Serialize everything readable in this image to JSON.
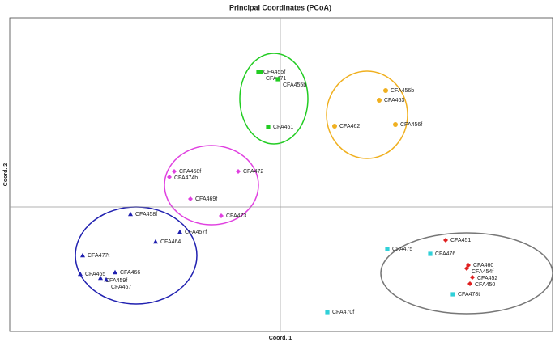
{
  "chart_data": {
    "type": "scatter",
    "title": "Principal Coordinates (PCoA)",
    "x_label": "Coord. 1",
    "y_label": "Coord. 2",
    "xlim": [
      -3.34,
      3.36
    ],
    "ylim": [
      -1.54,
      2.34
    ],
    "series": [
      {
        "color": "#22cc22",
        "marker": "square",
        "labels": [
          "CFA455f",
          "CFA471",
          "CFA455b",
          "CFA461"
        ],
        "x": [
          -0.27,
          -0.24,
          -0.03,
          -0.15
        ],
        "values": [
          1.67,
          1.67,
          1.58,
          0.99
        ]
      },
      {
        "color": "#f0b020",
        "marker": "circle",
        "labels": [
          "CFA456b",
          "CFA463",
          "CFA462",
          "CFA456f"
        ],
        "x": [
          1.3,
          1.22,
          0.67,
          1.42
        ],
        "values": [
          1.44,
          1.32,
          1.0,
          1.02
        ]
      },
      {
        "color": "#e040e0",
        "marker": "diamond",
        "labels": [
          "CFA468f",
          "CFA474b",
          "CFA472",
          "CFA469f",
          "CFA473"
        ],
        "x": [
          -1.31,
          -1.37,
          -0.52,
          -1.11,
          -0.73
        ],
        "values": [
          0.44,
          0.37,
          0.44,
          0.1,
          -0.11
        ]
      },
      {
        "color": "#2020b0",
        "marker": "triangle",
        "labels": [
          "CFA458f",
          "CFA457f",
          "CFA464",
          "CFA477t",
          "CFA466",
          "CFA465",
          "CFA459f",
          "CFA467"
        ],
        "x": [
          -1.85,
          -1.24,
          -1.54,
          -2.44,
          -2.04,
          -2.47,
          -2.22,
          -2.15
        ],
        "values": [
          -0.09,
          -0.31,
          -0.43,
          -0.6,
          -0.81,
          -0.83,
          -0.88,
          -0.9
        ]
      },
      {
        "color": "#e02020",
        "marker": "diamond",
        "labels": [
          "CFA451",
          "CFA460",
          "CFA454f",
          "CFA452",
          "CFA450"
        ],
        "x": [
          2.04,
          2.32,
          2.3,
          2.37,
          2.34
        ],
        "values": [
          -0.41,
          -0.72,
          -0.76,
          -0.87,
          -0.95
        ]
      },
      {
        "color": "#30d0d8",
        "marker": "square",
        "labels": [
          "CFA475",
          "CFA476",
          "CFA478t",
          "CFA470f"
        ],
        "x": [
          1.32,
          1.85,
          2.13,
          0.58
        ],
        "values": [
          -0.52,
          -0.58,
          -1.08,
          -1.3
        ]
      }
    ]
  }
}
